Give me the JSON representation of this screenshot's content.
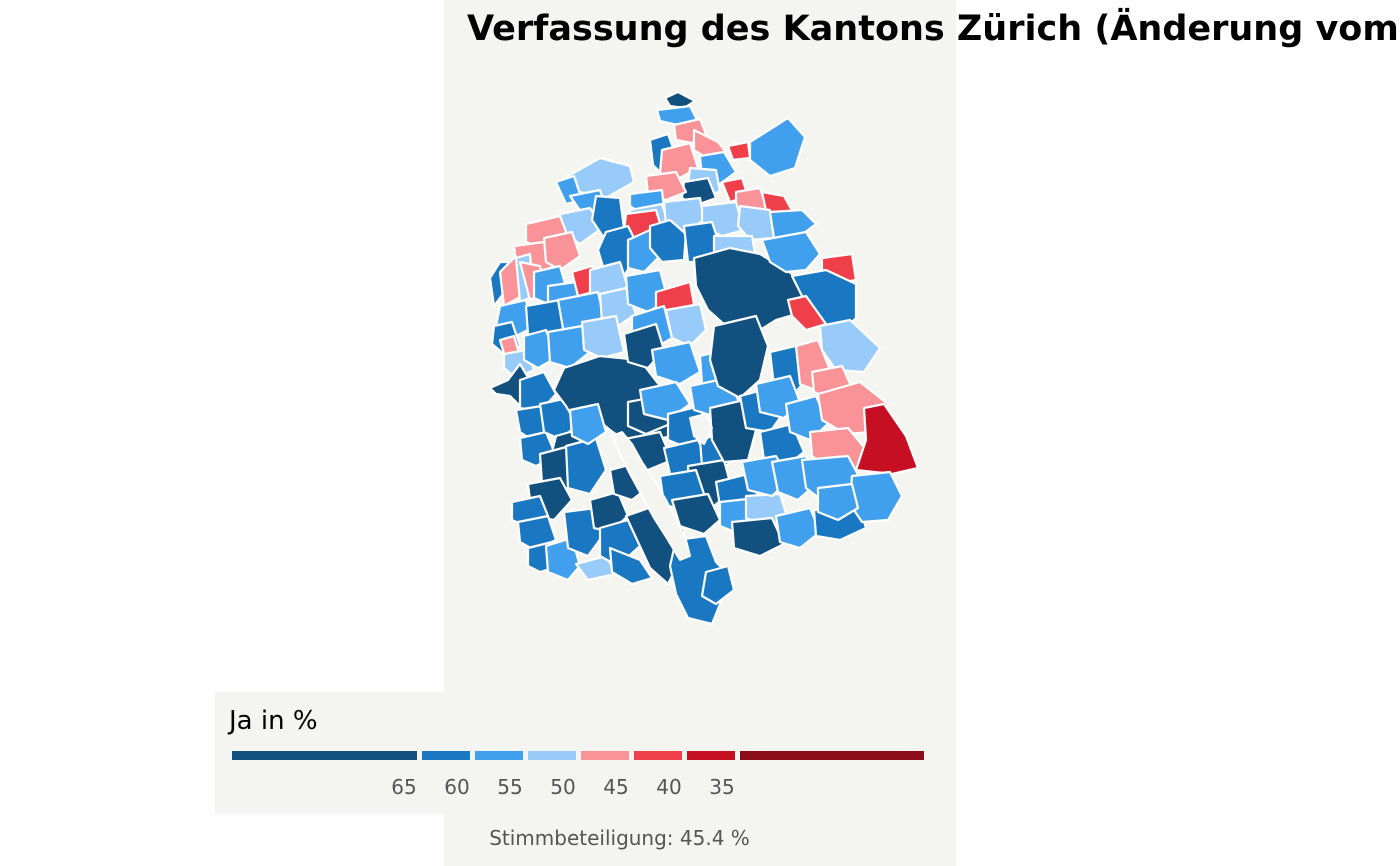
{
  "title": "Verfassung des Kantons Zürich (Änderung vom",
  "legend": {
    "title": "Ja in %",
    "ticks": [
      "65",
      "60",
      "55",
      "50",
      "45",
      "40",
      "35"
    ],
    "classes": [
      {
        "range": "> 65",
        "color": "#11507f"
      },
      {
        "range": "60–65",
        "color": "#1a78c2"
      },
      {
        "range": "55–60",
        "color": "#41a0ee"
      },
      {
        "range": "50–55",
        "color": "#98cbfa"
      },
      {
        "range": "45–50",
        "color": "#f99397"
      },
      {
        "range": "40–45",
        "color": "#ee3f4a"
      },
      {
        "range": "35–40",
        "color": "#c70f24"
      },
      {
        "range": "< 35",
        "color": "#8b0d1a"
      }
    ]
  },
  "caption": "Stimmbeteiligung: 45.4 %",
  "map": {
    "region": "Kanton Zürich",
    "unit": "Gemeinden",
    "lake_color": "#f4f4f1",
    "border_color": "#ffffff"
  }
}
